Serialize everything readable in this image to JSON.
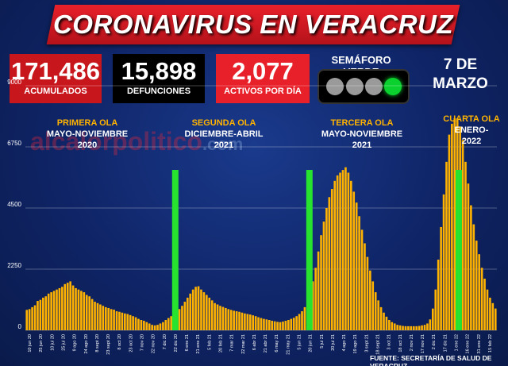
{
  "title": "CORONAVIRUS EN VERACRUZ",
  "stats": [
    {
      "value": "171,486",
      "label": "ACUMULADOS"
    },
    {
      "value": "15,898",
      "label": "DEFUNCIONES"
    },
    {
      "value": "2,077",
      "label": "ACTIVOS POR DÍA"
    }
  ],
  "semaforo": {
    "label": "SEMÁFORO VERDE",
    "lights": [
      "gray",
      "gray",
      "gray",
      "green"
    ]
  },
  "date": {
    "line1": "7 DE",
    "line2": "MARZO"
  },
  "watermark": {
    "main": "alcalorpolitico",
    "suffix": ".com"
  },
  "source": "FUENTE: SECRETARÍA DE SALUD DE VERACRUZ",
  "colors": {
    "banner": "#e8202a",
    "bar": "#ffb300",
    "marker": "#27e22f",
    "wave_title": "#ffb300"
  },
  "chart_data": {
    "type": "bar",
    "ylim": [
      0,
      9000
    ],
    "yticks": [
      0,
      2250,
      4500,
      6750,
      9000
    ],
    "grid": true,
    "xtick_labels": [
      "10 jun 20",
      "25 jun 20",
      "10 jul 20",
      "25 jul 20",
      "9 ago 20",
      "24 ago 20",
      "8 sept 20",
      "23 sept 20",
      "8 oct 20",
      "23 oct 20",
      "7 nov 20",
      "22 nov 20",
      "7 dic 20",
      "22 dic 20",
      "6 ene 21",
      "21 ene 21",
      "5 feb 21",
      "20 feb 21",
      "7 mar 21",
      "22 mar 21",
      "6 abr 21",
      "21 abr 21",
      "6 may 21",
      "21 may 21",
      "5 jun 21",
      "20 jun 21",
      "5 jul 21",
      "20 jul 21",
      "4 ago 21",
      "19 ago 21",
      "3 sept 21",
      "18 sept 21",
      "3 oct 21",
      "18 oct 21",
      "2 nov 21",
      "17 nov 21",
      "2 dic 21",
      "17 dic 21",
      "1 ene 22",
      "16 ene 22",
      "31 ene 22",
      "15 feb 22"
    ],
    "series_period_days": 5,
    "x_start": "10 jun 20",
    "values": [
      750,
      780,
      850,
      920,
      1080,
      1120,
      1200,
      1250,
      1350,
      1400,
      1450,
      1500,
      1550,
      1600,
      1700,
      1750,
      1800,
      1650,
      1550,
      1500,
      1450,
      1400,
      1300,
      1250,
      1150,
      1050,
      1000,
      950,
      900,
      850,
      820,
      780,
      760,
      700,
      680,
      650,
      620,
      600,
      560,
      520,
      480,
      420,
      380,
      350,
      300,
      250,
      200,
      180,
      200,
      250,
      300,
      380,
      450,
      520,
      600,
      680,
      780,
      900,
      1050,
      1200,
      1350,
      1500,
      1600,
      1620,
      1500,
      1400,
      1300,
      1200,
      1100,
      1000,
      950,
      900,
      860,
      820,
      780,
      750,
      720,
      700,
      680,
      650,
      620,
      600,
      580,
      550,
      520,
      480,
      450,
      420,
      400,
      380,
      350,
      330,
      310,
      300,
      320,
      350,
      380,
      420,
      460,
      520,
      600,
      700,
      850,
      1100,
      1400,
      1800,
      2300,
      2900,
      3500,
      4000,
      4500,
      4900,
      5200,
      5500,
      5700,
      5800,
      5900,
      6000,
      5800,
      5500,
      5100,
      4700,
      4200,
      3700,
      3200,
      2700,
      2200,
      1800,
      1400,
      1100,
      850,
      650,
      500,
      380,
      300,
      250,
      200,
      180,
      160,
      150,
      150,
      150,
      150,
      150,
      160,
      180,
      200,
      250,
      400,
      800,
      1500,
      2600,
      3800,
      5000,
      6200,
      7200,
      7600,
      7800,
      7800,
      7500,
      7000,
      6200,
      5400,
      4600,
      3900,
      3300,
      2800,
      2300,
      1900,
      1500,
      1200,
      1000,
      800
    ],
    "markers": [
      "27 dic 20",
      "25 jun 21",
      "11 ene 22"
    ],
    "waves": [
      {
        "name": "PRIMERA OLA",
        "period": "MAYO-NOVIEMBRE",
        "year": "2020"
      },
      {
        "name": "SEGUNDA OLA",
        "period": "DICIEMBRE-ABRIL",
        "year": "2021"
      },
      {
        "name": "TERCERA OLA",
        "period": "MAYO-NOVIEMBRE",
        "year": "2021"
      },
      {
        "name": "CUARTA OLA",
        "period": "ENERO-",
        "year": "2022"
      }
    ]
  }
}
